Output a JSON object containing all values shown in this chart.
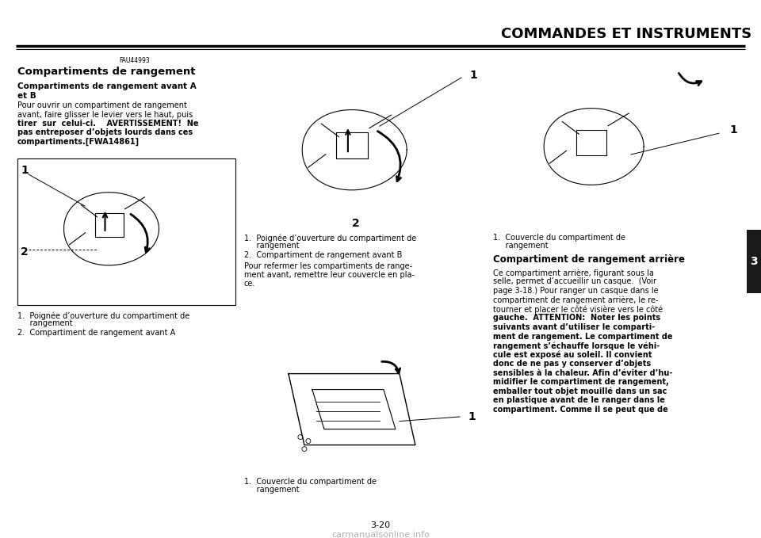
{
  "bg_color": "#ffffff",
  "page_width": 9.6,
  "page_height": 6.79,
  "header_title": "COMMANDES ET INSTRUMENTS",
  "header_title_size": 13,
  "page_number": "3-20",
  "tab_number": "3",
  "tab_color": "#1a1a1a",
  "small_code": "FAU44993",
  "section_title": "Compartiments de rangement",
  "subsection_title": "Compartiments de rangement avant A\net B",
  "left_body_lines": [
    [
      "Pour ouvrir un compartiment de rangement",
      false
    ],
    [
      "avant, faire glisser le levier vers le haut, puis",
      false
    ],
    [
      "tirer  sur  celui-ci.    AVERTISSEMENT!  Ne",
      true
    ],
    [
      "pas entreposer d’objets lourds dans ces",
      true
    ],
    [
      "compartiments.[FWA14861]",
      true
    ]
  ],
  "left_caption1a": "1.  Poignée d’ouverture du compartiment de",
  "left_caption1b": "     rangement",
  "left_caption2": "2.  Compartiment de rangement avant A",
  "mid_caption1a": "1.  Poignée d’ouverture du compartiment de",
  "mid_caption1b": "     rangement",
  "mid_caption2": "2.  Compartiment de rangement avant B",
  "mid_para1": "Pour refermer les compartiments de range-",
  "mid_para2": "ment avant, remettre leur couvercle en pla-",
  "mid_para3": "ce.",
  "mid_caption3a": "1.  Couvercle du compartiment de",
  "mid_caption3b": "     rangement",
  "right_caption1a": "1.  Couvercle du compartiment de",
  "right_caption1b": "     rangement",
  "right_section_title": "Compartiment de rangement arrière",
  "right_body_lines": [
    [
      "Ce compartiment arrière, figurant sous la",
      false
    ],
    [
      "selle, permet d’accueillir un casque.  (Voir",
      false
    ],
    [
      "page 3-18.) Pour ranger un casque dans le",
      false
    ],
    [
      "compartiment de rangement arrière, le re-",
      false
    ],
    [
      "tourner et placer le côté visière vers le côté",
      false
    ],
    [
      "gauche.  ATTENTION:  Noter les points",
      true
    ],
    [
      "suivants avant d’utiliser le comparti-",
      true
    ],
    [
      "ment de rangement. Le compartiment de",
      true
    ],
    [
      "rangement s’échauffe lorsque le véhi-",
      true
    ],
    [
      "cule est exposé au soleil. Il convient",
      true
    ],
    [
      "donc de ne pas y conserver d’objets",
      true
    ],
    [
      "sensibles à la chaleur. Afin d’éviter d’hu-",
      true
    ],
    [
      "midifier le compartiment de rangement,",
      true
    ],
    [
      "emballer tout objet mouillé dans un sac",
      true
    ],
    [
      "en plastique avant de le ranger dans le",
      true
    ],
    [
      "compartiment. Comme il se peut que de",
      true
    ]
  ],
  "watermark": "carmanualsonline.info",
  "watermark_color": "#b0b0b0",
  "text_color": "#000000"
}
